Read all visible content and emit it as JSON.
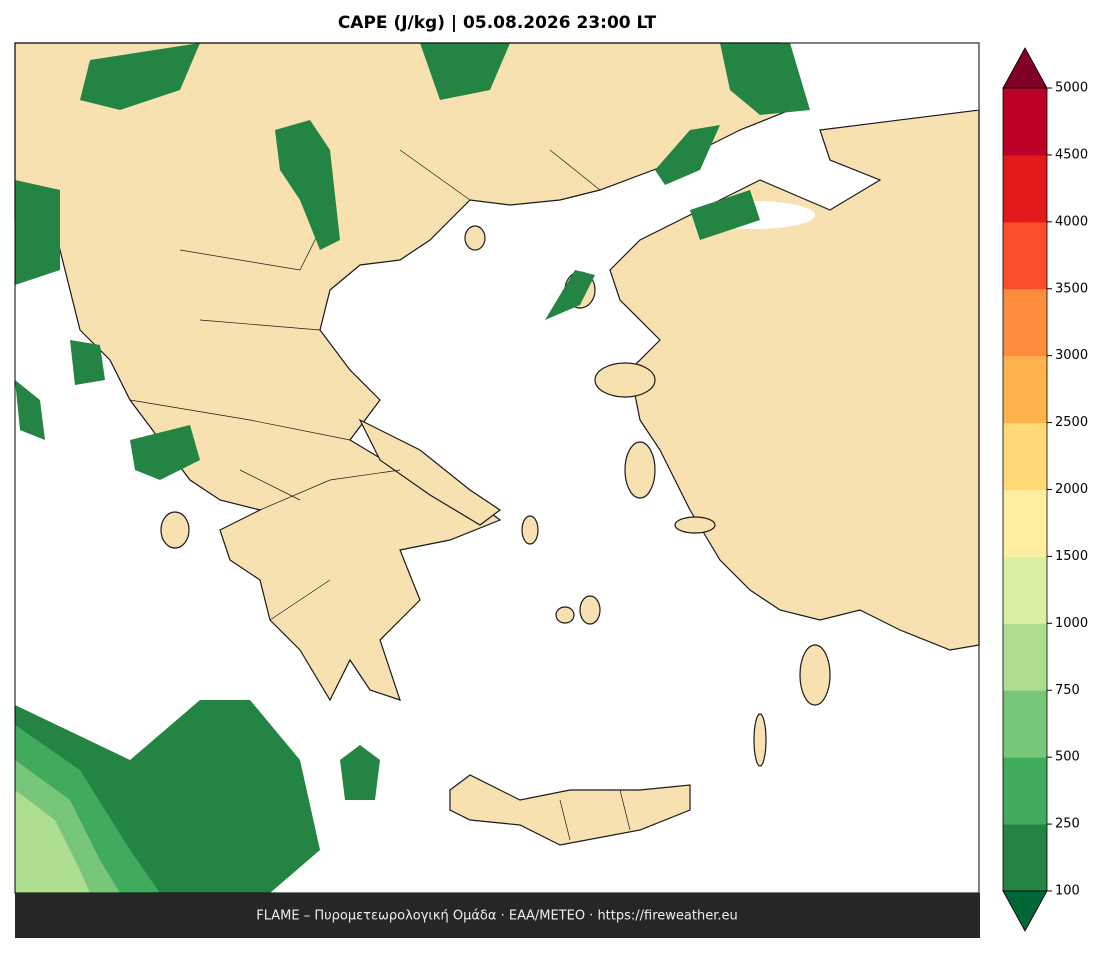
{
  "title": "CAPE (J/kg)  |  05.08.2026 23:00 LT",
  "colorbar": {
    "ticks": [
      100,
      250,
      500,
      750,
      1000,
      1500,
      2000,
      2500,
      3000,
      3500,
      4000,
      4500,
      5000
    ],
    "colors": [
      "#238443",
      "#41ab5d",
      "#78c679",
      "#addd8e",
      "#d9f0a3",
      "#ffeda0",
      "#fed976",
      "#feb24c",
      "#fd8d3c",
      "#fc4e2a",
      "#e31a1c",
      "#bd0026"
    ],
    "under_color": "#006837",
    "over_color": "#800026"
  },
  "footer": "FLAME – Πυρομετεωρολογική Ομάδα · ΕΑΑ/METEO · https://fireweather.eu"
}
